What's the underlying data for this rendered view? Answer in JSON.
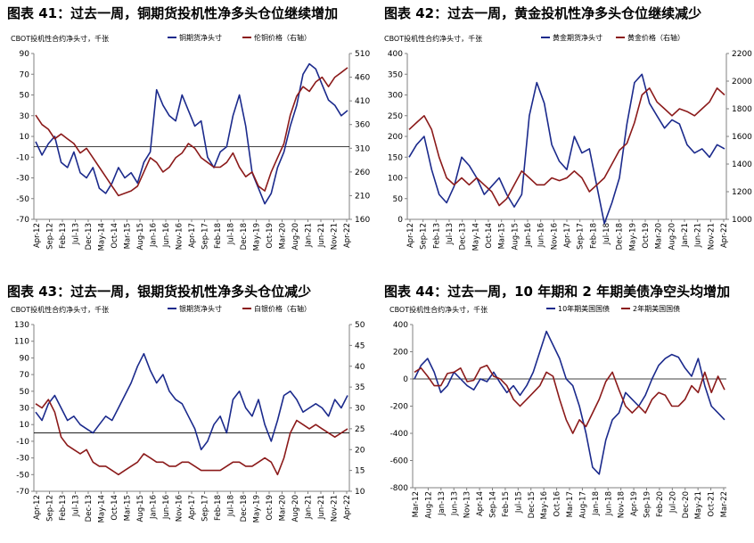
{
  "colors": {
    "navy": "#1b2a8c",
    "maroon": "#8b1a1a",
    "axis": "#808080",
    "zero": "#000000"
  },
  "chart_data": [
    {
      "type": "line",
      "title": "图表 41：过去一周，铜期货投机性净多头仓位继续增加",
      "ylabel": "CBOT投机性合约净头寸，千张",
      "ylim_left": [
        -70,
        90
      ],
      "yticks_left": [
        "90",
        "70",
        "50",
        "30",
        "10",
        "-10",
        "-30",
        "-50",
        "-70"
      ],
      "ylim_right": [
        160,
        510
      ],
      "yticks_right": [
        "510",
        "460",
        "410",
        "360",
        "310",
        "260",
        "210",
        "160"
      ],
      "xticks": [
        "Apr-12",
        "Sep-12",
        "Feb-13",
        "Jul-13",
        "Dec-13",
        "May-14",
        "Oct-14",
        "Mar-15",
        "Aug-15",
        "Jan-16",
        "Jun-16",
        "Nov-16",
        "Apr-17",
        "Sep-17",
        "Feb-18",
        "Jul-18",
        "Dec-18",
        "May-19",
        "Oct-19",
        "Mar-20",
        "Aug-20",
        "Jan-21",
        "Jun-21",
        "Nov-21",
        "Apr-22"
      ],
      "series": [
        {
          "name": "铜期货净头寸",
          "axis": "left",
          "values": [
            5,
            -8,
            3,
            10,
            -15,
            -20,
            -5,
            -25,
            -30,
            -20,
            -40,
            -45,
            -35,
            -20,
            -30,
            -25,
            -35,
            -15,
            -5,
            55,
            40,
            30,
            25,
            50,
            35,
            20,
            25,
            -10,
            -20,
            -5,
            0,
            30,
            50,
            20,
            -25,
            -40,
            -55,
            -45,
            -20,
            -5,
            20,
            40,
            70,
            80,
            75,
            60,
            45,
            40,
            30,
            35
          ]
        },
        {
          "name": "伦铜价格（右轴）",
          "axis": "right",
          "values": [
            380,
            360,
            350,
            330,
            340,
            330,
            320,
            300,
            310,
            290,
            270,
            250,
            230,
            210,
            215,
            220,
            230,
            260,
            290,
            280,
            260,
            270,
            290,
            300,
            320,
            310,
            290,
            280,
            270,
            270,
            280,
            300,
            270,
            250,
            260,
            230,
            220,
            260,
            290,
            320,
            380,
            420,
            440,
            430,
            450,
            460,
            440,
            460,
            470,
            480
          ]
        }
      ],
      "legend": "top-center"
    },
    {
      "type": "line",
      "title": "图表 42：过去一周，黄金投机性净多头仓位继续减少",
      "ylabel": "CBOT投机性合约净头寸，千张",
      "ylim_left": [
        0,
        400
      ],
      "yticks_left": [
        "400",
        "350",
        "300",
        "250",
        "200",
        "150",
        "100",
        "50",
        "0"
      ],
      "ylim_right": [
        1000,
        2200
      ],
      "yticks_right": [
        "2200",
        "2000",
        "1800",
        "1600",
        "1400",
        "1200",
        "1000"
      ],
      "xticks": [
        "Apr-12",
        "Sep-12",
        "Feb-13",
        "Jul-13",
        "Dec-13",
        "May-14",
        "Oct-14",
        "Mar-15",
        "Aug-15",
        "Jan-16",
        "Jun-16",
        "Nov-16",
        "Apr-17",
        "Sep-17",
        "Feb-18",
        "Jul-18",
        "Dec-18",
        "May-19",
        "Oct-19",
        "Mar-20",
        "Aug-20",
        "Jan-21",
        "Jun-21",
        "Nov-21",
        "Apr-22"
      ],
      "series": [
        {
          "name": "黄金期货净头寸",
          "axis": "left",
          "values": [
            150,
            180,
            200,
            120,
            60,
            40,
            80,
            150,
            130,
            100,
            60,
            80,
            100,
            60,
            30,
            60,
            250,
            330,
            280,
            180,
            140,
            120,
            200,
            160,
            170,
            80,
            -10,
            40,
            100,
            230,
            330,
            350,
            280,
            250,
            220,
            240,
            230,
            180,
            160,
            170,
            150,
            180,
            170
          ]
        },
        {
          "name": "黄金价格（右轴）",
          "axis": "right",
          "values": [
            1650,
            1700,
            1750,
            1650,
            1450,
            1300,
            1250,
            1300,
            1250,
            1300,
            1250,
            1200,
            1100,
            1150,
            1250,
            1350,
            1300,
            1250,
            1250,
            1300,
            1280,
            1300,
            1350,
            1300,
            1200,
            1250,
            1300,
            1400,
            1500,
            1550,
            1700,
            1900,
            1950,
            1850,
            1800,
            1750,
            1800,
            1780,
            1750,
            1800,
            1850,
            1950,
            1900
          ]
        }
      ],
      "legend": "top-center"
    },
    {
      "type": "line",
      "title": "图表 43：过去一周，银期货投机性净多头仓位减少",
      "ylabel": "CBOT投机性合约净头寸，千张",
      "ylim_left": [
        -70,
        130
      ],
      "yticks_left": [
        "130",
        "110",
        "90",
        "70",
        "50",
        "30",
        "10",
        "-10",
        "-30",
        "-50",
        "-70"
      ],
      "ylim_right": [
        10,
        50
      ],
      "yticks_right": [
        "50",
        "45",
        "40",
        "35",
        "30",
        "25",
        "20",
        "15",
        "10"
      ],
      "xticks": [
        "Apr-12",
        "Sep-12",
        "Feb-13",
        "Jul-13",
        "Dec-13",
        "May-14",
        "Oct-14",
        "Mar-15",
        "Aug-15",
        "Jan-16",
        "Jun-16",
        "Nov-16",
        "Apr-17",
        "Sep-17",
        "Feb-18",
        "Jul-18",
        "Dec-18",
        "May-19",
        "Oct-19",
        "Mar-20",
        "Aug-20",
        "Jan-21",
        "Jun-21",
        "Nov-21",
        "Apr-22"
      ],
      "series": [
        {
          "name": "银期货净头寸",
          "axis": "left",
          "values": [
            25,
            15,
            35,
            45,
            30,
            15,
            20,
            10,
            5,
            0,
            10,
            20,
            15,
            30,
            45,
            60,
            80,
            95,
            75,
            60,
            70,
            50,
            40,
            35,
            20,
            5,
            -20,
            -10,
            10,
            20,
            0,
            40,
            50,
            30,
            20,
            40,
            10,
            -10,
            15,
            45,
            50,
            40,
            25,
            30,
            35,
            30,
            20,
            40,
            30,
            45
          ]
        },
        {
          "name": "白银价格（右轴）",
          "axis": "right",
          "values": [
            31,
            30,
            32,
            29,
            23,
            21,
            20,
            19,
            20,
            17,
            16,
            16,
            15,
            14,
            15,
            16,
            17,
            19,
            18,
            17,
            17,
            16,
            16,
            17,
            17,
            16,
            15,
            15,
            15,
            15,
            16,
            17,
            17,
            16,
            16,
            17,
            18,
            17,
            14,
            18,
            24,
            27,
            26,
            25,
            26,
            25,
            24,
            23,
            24,
            25
          ]
        }
      ],
      "legend": "top-center"
    },
    {
      "type": "line",
      "title": "图表 44：过去一周，10 年期和 2 年期美债净空头均增加",
      "ylabel": "CBOT投机性合约净头寸，千张",
      "ylim_left": [
        -800,
        400
      ],
      "yticks_left": [
        "400",
        "200",
        "0",
        "-200",
        "-400",
        "-600",
        "-800"
      ],
      "xticks": [
        "Mar-12",
        "Aug-12",
        "Jan-13",
        "Jun-13",
        "Nov-13",
        "Apr-14",
        "Sep-14",
        "Feb-15",
        "Jul-15",
        "Dec-15",
        "May-16",
        "Oct-16",
        "Mar-17",
        "Aug-17",
        "Jan-18",
        "Jun-18",
        "Nov-18",
        "Apr-19",
        "Sep-19",
        "Feb-20",
        "Jul-20",
        "Dec-20",
        "May-21",
        "Oct-21",
        "Mar-22"
      ],
      "series": [
        {
          "name": "10年期美国国债",
          "axis": "left",
          "values": [
            0,
            100,
            150,
            50,
            -100,
            -50,
            50,
            0,
            -50,
            -80,
            0,
            -20,
            50,
            -30,
            -100,
            -50,
            -120,
            -50,
            50,
            200,
            350,
            250,
            150,
            0,
            -50,
            -200,
            -400,
            -650,
            -700,
            -450,
            -300,
            -250,
            -100,
            -150,
            -200,
            -120,
            0,
            100,
            150,
            180,
            160,
            80,
            20,
            150,
            -50,
            -200,
            -250,
            -300
          ]
        },
        {
          "name": "2年期美国国债",
          "axis": "left",
          "values": [
            50,
            80,
            20,
            -50,
            -50,
            40,
            50,
            80,
            -20,
            -10,
            80,
            100,
            20,
            0,
            -50,
            -150,
            -200,
            -150,
            -100,
            -50,
            50,
            20,
            -150,
            -300,
            -400,
            -300,
            -350,
            -250,
            -150,
            -20,
            50,
            -80,
            -200,
            -250,
            -200,
            -250,
            -150,
            -100,
            -120,
            -200,
            -200,
            -150,
            -50,
            -100,
            50,
            -100,
            20,
            -80
          ]
        }
      ],
      "legend": "top-center"
    }
  ]
}
